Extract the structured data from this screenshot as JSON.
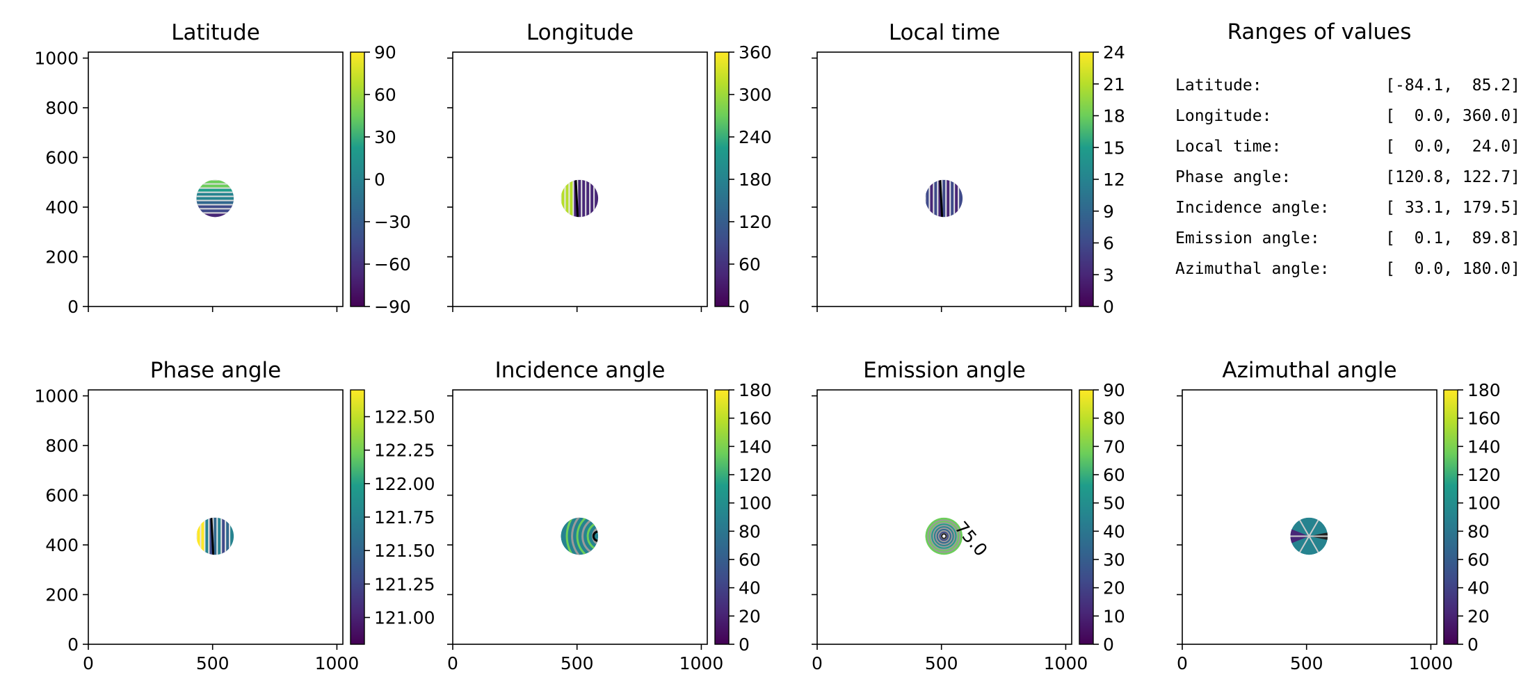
{
  "colors": {
    "viridis": [
      "#440154",
      "#482777",
      "#3f4a8a",
      "#31678e",
      "#26838f",
      "#1f9d8a",
      "#6cce5a",
      "#b6de2b",
      "#fee825"
    ],
    "axes": "#000000",
    "background": "#ffffff"
  },
  "chart_data": [
    {
      "id": "latitude",
      "type": "heatmap",
      "title": "Latitude",
      "xlim": [
        0,
        1024
      ],
      "ylim": [
        0,
        1024
      ],
      "x_ticks": [
        0,
        500,
        1000
      ],
      "x_tick_labels_shown": false,
      "y_ticks": [
        0,
        200,
        400,
        600,
        800,
        1000
      ],
      "y_tick_labels_shown": true,
      "y_tick_labels": [
        "0",
        "200",
        "400",
        "600",
        "800",
        "1000"
      ],
      "colorbar": {
        "range": [
          -90,
          90
        ],
        "ticks": [
          -90,
          -60,
          -30,
          0,
          30,
          60,
          90
        ],
        "tick_labels": [
          "−90",
          "−60",
          "−30",
          "0",
          "30",
          "60",
          "90"
        ]
      },
      "disk": {
        "center": [
          510,
          435
        ],
        "radius": 75
      },
      "contours": "horizontal",
      "grid": false
    },
    {
      "id": "longitude",
      "type": "heatmap",
      "title": "Longitude",
      "xlim": [
        0,
        1024
      ],
      "ylim": [
        0,
        1024
      ],
      "x_ticks": [
        0,
        500,
        1000
      ],
      "x_tick_labels_shown": false,
      "y_ticks": [
        0,
        200,
        400,
        600,
        800,
        1000
      ],
      "y_tick_labels_shown": false,
      "colorbar": {
        "range": [
          0,
          360
        ],
        "ticks": [
          0,
          60,
          120,
          180,
          240,
          300,
          360
        ],
        "tick_labels": [
          "0",
          "60",
          "120",
          "180",
          "240",
          "300",
          "360"
        ]
      },
      "disk": {
        "center": [
          510,
          435
        ],
        "radius": 75
      },
      "contours": "vertical",
      "grid": false
    },
    {
      "id": "local-time",
      "type": "heatmap",
      "title": "Local time",
      "xlim": [
        0,
        1024
      ],
      "ylim": [
        0,
        1024
      ],
      "x_ticks": [
        0,
        500,
        1000
      ],
      "x_tick_labels_shown": false,
      "y_ticks": [
        0,
        200,
        400,
        600,
        800,
        1000
      ],
      "y_tick_labels_shown": false,
      "colorbar": {
        "range": [
          0,
          24
        ],
        "ticks": [
          0,
          3,
          6,
          9,
          12,
          15,
          18,
          21,
          24
        ],
        "tick_labels": [
          "0",
          "3",
          "6",
          "9",
          "12",
          "15",
          "18",
          "21",
          "24"
        ]
      },
      "disk": {
        "center": [
          510,
          435
        ],
        "radius": 75
      },
      "contours": "vertical",
      "grid": false
    },
    {
      "id": "phase-angle",
      "type": "heatmap",
      "title": "Phase angle",
      "xlim": [
        0,
        1024
      ],
      "ylim": [
        0,
        1024
      ],
      "x_ticks": [
        0,
        500,
        1000
      ],
      "x_tick_labels_shown": false,
      "y_ticks": [
        0,
        200,
        400,
        600,
        800,
        1000
      ],
      "y_tick_labels_shown": true,
      "y_tick_labels": [
        "0",
        "200",
        "400",
        "600",
        "800",
        "1000"
      ],
      "colorbar": {
        "range": [
          120.8,
          122.7
        ],
        "ticks": [
          121.0,
          121.25,
          121.5,
          121.75,
          122.0,
          122.25,
          122.5
        ],
        "tick_labels": [
          "121.00",
          "121.25",
          "121.50",
          "121.75",
          "122.00",
          "122.25",
          "122.50"
        ]
      },
      "disk": {
        "center": [
          510,
          435
        ],
        "radius": 75
      },
      "contours": "vertical",
      "grid": false
    },
    {
      "id": "incidence-angle",
      "type": "heatmap",
      "title": "Incidence angle",
      "xlim": [
        0,
        1024
      ],
      "ylim": [
        0,
        1024
      ],
      "x_ticks": [
        0,
        500,
        1000
      ],
      "x_tick_labels_shown": false,
      "y_ticks": [
        0,
        200,
        400,
        600,
        800,
        1000
      ],
      "y_tick_labels_shown": false,
      "colorbar": {
        "range": [
          0,
          180
        ],
        "ticks": [
          0,
          20,
          40,
          60,
          80,
          100,
          120,
          140,
          160,
          180
        ],
        "tick_labels": [
          "0",
          "20",
          "40",
          "60",
          "80",
          "100",
          "120",
          "140",
          "160",
          "180"
        ]
      },
      "disk": {
        "center": [
          510,
          435
        ],
        "radius": 75
      },
      "contours": "arcs",
      "grid": false
    },
    {
      "id": "emission-angle",
      "type": "heatmap",
      "title": "Emission angle",
      "xlim": [
        0,
        1024
      ],
      "ylim": [
        0,
        1024
      ],
      "x_ticks": [
        0,
        500,
        1000
      ],
      "x_tick_labels_shown": false,
      "y_ticks": [
        0,
        200,
        400,
        600,
        800,
        1000
      ],
      "y_tick_labels_shown": false,
      "colorbar": {
        "range": [
          0,
          90
        ],
        "ticks": [
          0,
          10,
          20,
          30,
          40,
          50,
          60,
          70,
          80,
          90
        ],
        "tick_labels": [
          "0",
          "10",
          "20",
          "30",
          "40",
          "50",
          "60",
          "70",
          "80",
          "90"
        ]
      },
      "disk": {
        "center": [
          510,
          435
        ],
        "radius": 75
      },
      "contours": "rings",
      "contour_labels": [
        "75.0"
      ],
      "grid": false
    },
    {
      "id": "azimuthal-angle",
      "type": "heatmap",
      "title": "Azimuthal angle",
      "xlim": [
        0,
        1024
      ],
      "ylim": [
        0,
        1024
      ],
      "x_ticks": [
        0,
        500,
        1000
      ],
      "x_tick_labels_shown": false,
      "y_ticks": [
        0,
        200,
        400,
        600,
        800,
        1000
      ],
      "y_tick_labels_shown": false,
      "colorbar": {
        "range": [
          0,
          180
        ],
        "ticks": [
          0,
          20,
          40,
          60,
          80,
          100,
          120,
          140,
          160,
          180
        ],
        "tick_labels": [
          "0",
          "20",
          "40",
          "60",
          "80",
          "100",
          "120",
          "140",
          "160",
          "180"
        ]
      },
      "disk": {
        "center": [
          510,
          435
        ],
        "radius": 75
      },
      "contours": "wedges",
      "grid": false
    }
  ],
  "x_tick_labels": [
    "0",
    "500",
    "1000"
  ],
  "ranges_panel": {
    "title": "Ranges of values",
    "rows": [
      {
        "label": "Latitude:",
        "value": "[-84.1,  85.2]"
      },
      {
        "label": "Longitude:",
        "value": "[  0.0, 360.0]"
      },
      {
        "label": "Local time:",
        "value": "[  0.0,  24.0]"
      },
      {
        "label": "Phase angle:",
        "value": "[120.8, 122.7]"
      },
      {
        "label": "Incidence angle:",
        "value": "[ 33.1, 179.5]"
      },
      {
        "label": "Emission angle:",
        "value": "[  0.1,  89.8]"
      },
      {
        "label": "Azimuthal angle:",
        "value": "[  0.0, 180.0]"
      }
    ]
  }
}
